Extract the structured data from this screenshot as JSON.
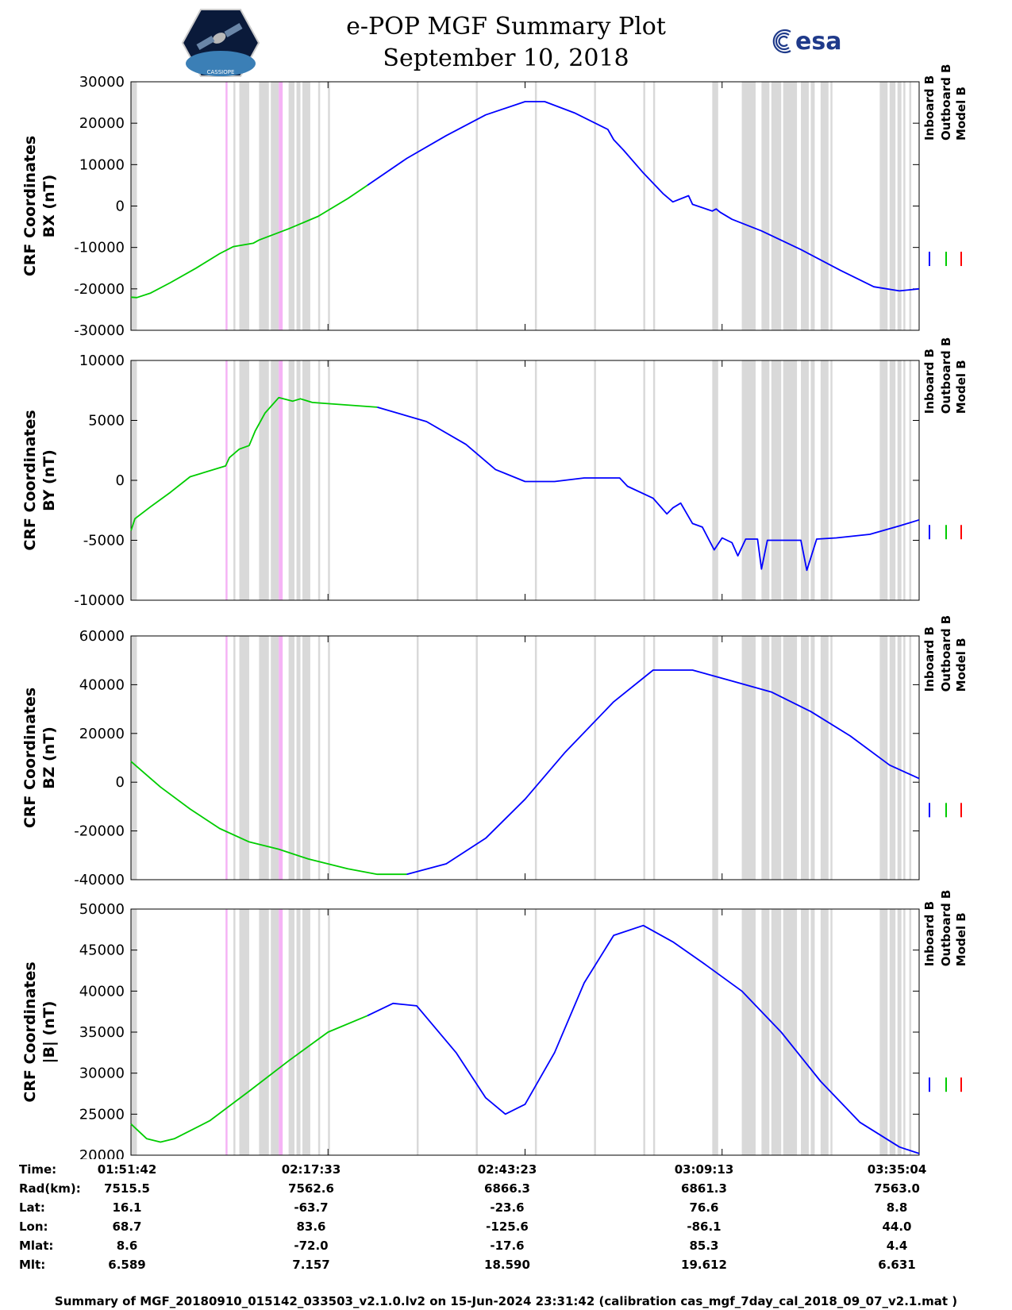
{
  "header": {
    "title": "e-POP MGF Summary Plot",
    "date": "September 10, 2018",
    "logo_left": "CASSIOPE",
    "logo_right": "esa"
  },
  "legend_items": [
    "Inboard B",
    "Outboard B",
    "Model B"
  ],
  "colors": {
    "inboard": "#0000ff",
    "outboard": "#00cc00",
    "model": "#ff0000",
    "gray_band": "#d9d9d9",
    "pink_band": "#f5b3f5"
  },
  "chart_data": [
    {
      "type": "line",
      "ylabel": [
        "CRF Coordinates",
        "BX (nT)"
      ],
      "ylim": [
        -30000,
        30000
      ],
      "yticks": [
        -30000,
        -20000,
        -10000,
        0,
        10000,
        20000,
        30000
      ],
      "ytick_labels": [
        "-30000",
        "-20000",
        "-10000",
        "0",
        "10000",
        "20000",
        "30000"
      ],
      "series": [
        {
          "name": "Outboard B",
          "color": "outboard",
          "points": [
            [
              0,
              -22000
            ],
            [
              3,
              -22100
            ],
            [
              10,
              -21000
            ],
            [
              20,
              -18500
            ],
            [
              33,
              -15000
            ],
            [
              45,
              -11500
            ],
            [
              52,
              -9800
            ],
            [
              62,
              -9000
            ],
            [
              65,
              -8200
            ],
            [
              80,
              -5500
            ],
            [
              95,
              -2500
            ],
            [
              110,
              1800
            ],
            [
              120,
              5000
            ]
          ]
        },
        {
          "name": "Inboard B",
          "color": "inboard",
          "points": [
            [
              120,
              5000
            ],
            [
              140,
              11500
            ],
            [
              160,
              17000
            ],
            [
              180,
              22000
            ],
            [
              200,
              25200
            ],
            [
              210,
              25200
            ],
            [
              225,
              22500
            ],
            [
              242,
              18500
            ],
            [
              245,
              16000
            ],
            [
              250,
              13500
            ],
            [
              260,
              8000
            ],
            [
              270,
              3000
            ],
            [
              275,
              1000
            ],
            [
              283,
              2500
            ],
            [
              285,
              400
            ],
            [
              295,
              -1200
            ],
            [
              297,
              -700
            ],
            [
              299,
              -1500
            ],
            [
              305,
              -3200
            ],
            [
              320,
              -6000
            ],
            [
              340,
              -10500
            ],
            [
              360,
              -15500
            ],
            [
              377,
              -19500
            ],
            [
              390,
              -20500
            ],
            [
              400,
              -20000
            ]
          ]
        }
      ]
    },
    {
      "type": "line",
      "ylabel": [
        "CRF Coordinates",
        "BY (nT)"
      ],
      "ylim": [
        -10000,
        10000
      ],
      "yticks": [
        -10000,
        -5000,
        0,
        5000,
        10000
      ],
      "ytick_labels": [
        "-10000",
        "-5000",
        "0",
        "5000",
        "10000"
      ],
      "series": [
        {
          "name": "Outboard B",
          "color": "outboard",
          "points": [
            [
              0,
              -4200
            ],
            [
              2,
              -3200
            ],
            [
              10,
              -2200
            ],
            [
              20,
              -1000
            ],
            [
              30,
              300
            ],
            [
              48,
              1200
            ],
            [
              50,
              1900
            ],
            [
              55,
              2600
            ],
            [
              60,
              2900
            ],
            [
              63,
              4100
            ],
            [
              68,
              5600
            ],
            [
              75,
              6900
            ],
            [
              82,
              6600
            ],
            [
              86,
              6800
            ],
            [
              92,
              6500
            ],
            [
              100,
              6400
            ],
            [
              125,
              6100
            ]
          ]
        },
        {
          "name": "Inboard B",
          "color": "inboard",
          "points": [
            [
              125,
              6100
            ],
            [
              150,
              4900
            ],
            [
              170,
              3000
            ],
            [
              185,
              900
            ],
            [
              200,
              -100
            ],
            [
              215,
              -100
            ],
            [
              230,
              200
            ],
            [
              245,
              200
            ],
            [
              248,
              200
            ],
            [
              252,
              -500
            ],
            [
              265,
              -1500
            ],
            [
              272,
              -2800
            ],
            [
              275,
              -2300
            ],
            [
              279,
              -1900
            ],
            [
              285,
              -3600
            ],
            [
              290,
              -3900
            ],
            [
              296,
              -5800
            ],
            [
              300,
              -4800
            ],
            [
              305,
              -5200
            ],
            [
              308,
              -6300
            ],
            [
              312,
              -4900
            ],
            [
              318,
              -4900
            ],
            [
              320,
              -7400
            ],
            [
              323,
              -5000
            ],
            [
              330,
              -5000
            ],
            [
              340,
              -5000
            ],
            [
              343,
              -7500
            ],
            [
              348,
              -4900
            ],
            [
              358,
              -4800
            ],
            [
              375,
              -4500
            ],
            [
              390,
              -3800
            ],
            [
              400,
              -3300
            ]
          ]
        }
      ]
    },
    {
      "type": "line",
      "ylabel": [
        "CRF Coordinates",
        "BZ (nT)"
      ],
      "ylim": [
        -40000,
        60000
      ],
      "yticks": [
        -40000,
        -20000,
        0,
        20000,
        40000,
        60000
      ],
      "ytick_labels": [
        "-40000",
        "-20000",
        "0",
        "20000",
        "40000",
        "60000"
      ],
      "series": [
        {
          "name": "Outboard B",
          "color": "outboard",
          "points": [
            [
              0,
              8500
            ],
            [
              15,
              -2000
            ],
            [
              30,
              -11000
            ],
            [
              45,
              -19000
            ],
            [
              60,
              -24500
            ],
            [
              75,
              -27500
            ],
            [
              90,
              -31500
            ],
            [
              110,
              -35500
            ],
            [
              125,
              -37800
            ],
            [
              140,
              -37800
            ]
          ]
        },
        {
          "name": "Inboard B",
          "color": "inboard",
          "points": [
            [
              140,
              -37800
            ],
            [
              160,
              -33500
            ],
            [
              180,
              -23000
            ],
            [
              200,
              -7000
            ],
            [
              220,
              12000
            ],
            [
              245,
              33000
            ],
            [
              265,
              46000
            ],
            [
              285,
              46000
            ],
            [
              305,
              41500
            ],
            [
              325,
              37000
            ],
            [
              345,
              29000
            ],
            [
              365,
              19000
            ],
            [
              385,
              7000
            ],
            [
              400,
              1500
            ]
          ]
        }
      ]
    },
    {
      "type": "line",
      "ylabel": [
        "CRF Coordinates",
        "|B| (nT)"
      ],
      "ylim": [
        20000,
        50000
      ],
      "yticks": [
        20000,
        25000,
        30000,
        35000,
        40000,
        45000,
        50000
      ],
      "ytick_labels": [
        "20000",
        "25000",
        "30000",
        "35000",
        "40000",
        "45000",
        "50000"
      ],
      "series": [
        {
          "name": "Outboard B",
          "color": "outboard",
          "points": [
            [
              0,
              23800
            ],
            [
              8,
              22000
            ],
            [
              15,
              21600
            ],
            [
              22,
              22000
            ],
            [
              40,
              24200
            ],
            [
              60,
              27800
            ],
            [
              80,
              31500
            ],
            [
              100,
              35000
            ],
            [
              120,
              37000
            ]
          ]
        },
        {
          "name": "Inboard B",
          "color": "inboard",
          "points": [
            [
              120,
              37000
            ],
            [
              133,
              38500
            ],
            [
              145,
              38200
            ],
            [
              165,
              32500
            ],
            [
              180,
              27000
            ],
            [
              190,
              25000
            ],
            [
              200,
              26200
            ],
            [
              215,
              32500
            ],
            [
              230,
              41000
            ],
            [
              245,
              46800
            ],
            [
              260,
              48000
            ],
            [
              275,
              46000
            ],
            [
              290,
              43500
            ],
            [
              310,
              40000
            ],
            [
              330,
              35000
            ],
            [
              350,
              29000
            ],
            [
              370,
              24000
            ],
            [
              390,
              21000
            ],
            [
              400,
              20200
            ]
          ]
        }
      ]
    }
  ],
  "x_axis": {
    "range": [
      0,
      400
    ],
    "ticks": [
      0,
      100,
      200,
      300,
      400
    ]
  },
  "shading": {
    "gray": [
      [
        0,
        3
      ],
      [
        52,
        53
      ],
      [
        55,
        60
      ],
      [
        65,
        70
      ],
      [
        71,
        75
      ],
      [
        80,
        83
      ],
      [
        84,
        86
      ],
      [
        87,
        91
      ],
      [
        95,
        96
      ],
      [
        100,
        101
      ],
      [
        145,
        146
      ],
      [
        175,
        176
      ],
      [
        205,
        206
      ],
      [
        235,
        236
      ],
      [
        260,
        261
      ],
      [
        265,
        266
      ],
      [
        295,
        298
      ],
      [
        310,
        317
      ],
      [
        320,
        324
      ],
      [
        325,
        330
      ],
      [
        331,
        338
      ],
      [
        340,
        344
      ],
      [
        345,
        347
      ],
      [
        350,
        354
      ],
      [
        355,
        356
      ],
      [
        380,
        384
      ],
      [
        385,
        388
      ],
      [
        389,
        391
      ],
      [
        392,
        393
      ],
      [
        395,
        396
      ]
    ],
    "pink": [
      [
        48,
        49
      ],
      [
        75,
        77
      ]
    ]
  },
  "info_table": {
    "labels": [
      "Time:",
      "Rad(km):",
      "Lat:",
      "Lon:",
      "Mlat:",
      "Mlt:"
    ],
    "columns": [
      {
        "time": "01:51:42",
        "rad": "7515.5",
        "lat": "16.1",
        "lon": "68.7",
        "mlat": "8.6",
        "mlt": "6.589"
      },
      {
        "time": "02:17:33",
        "rad": "7562.6",
        "lat": "-63.7",
        "lon": "83.6",
        "mlat": "-72.0",
        "mlt": "7.157"
      },
      {
        "time": "02:43:23",
        "rad": "6866.3",
        "lat": "-23.6",
        "lon": "-125.6",
        "mlat": "-17.6",
        "mlt": "18.590"
      },
      {
        "time": "03:09:13",
        "rad": "6861.3",
        "lat": "76.6",
        "lon": "-86.1",
        "mlat": "85.3",
        "mlt": "19.612"
      },
      {
        "time": "03:35:04",
        "rad": "7563.0",
        "lat": "8.8",
        "lon": "44.0",
        "mlat": "4.4",
        "mlt": "6.631"
      }
    ]
  },
  "footer": "Summary of MGF_20180910_015142_033503_v2.1.0.lv2 on 15-Jun-2024 23:31:42 (calibration cas_mgf_7day_cal_2018_09_07_v2.1.mat )"
}
